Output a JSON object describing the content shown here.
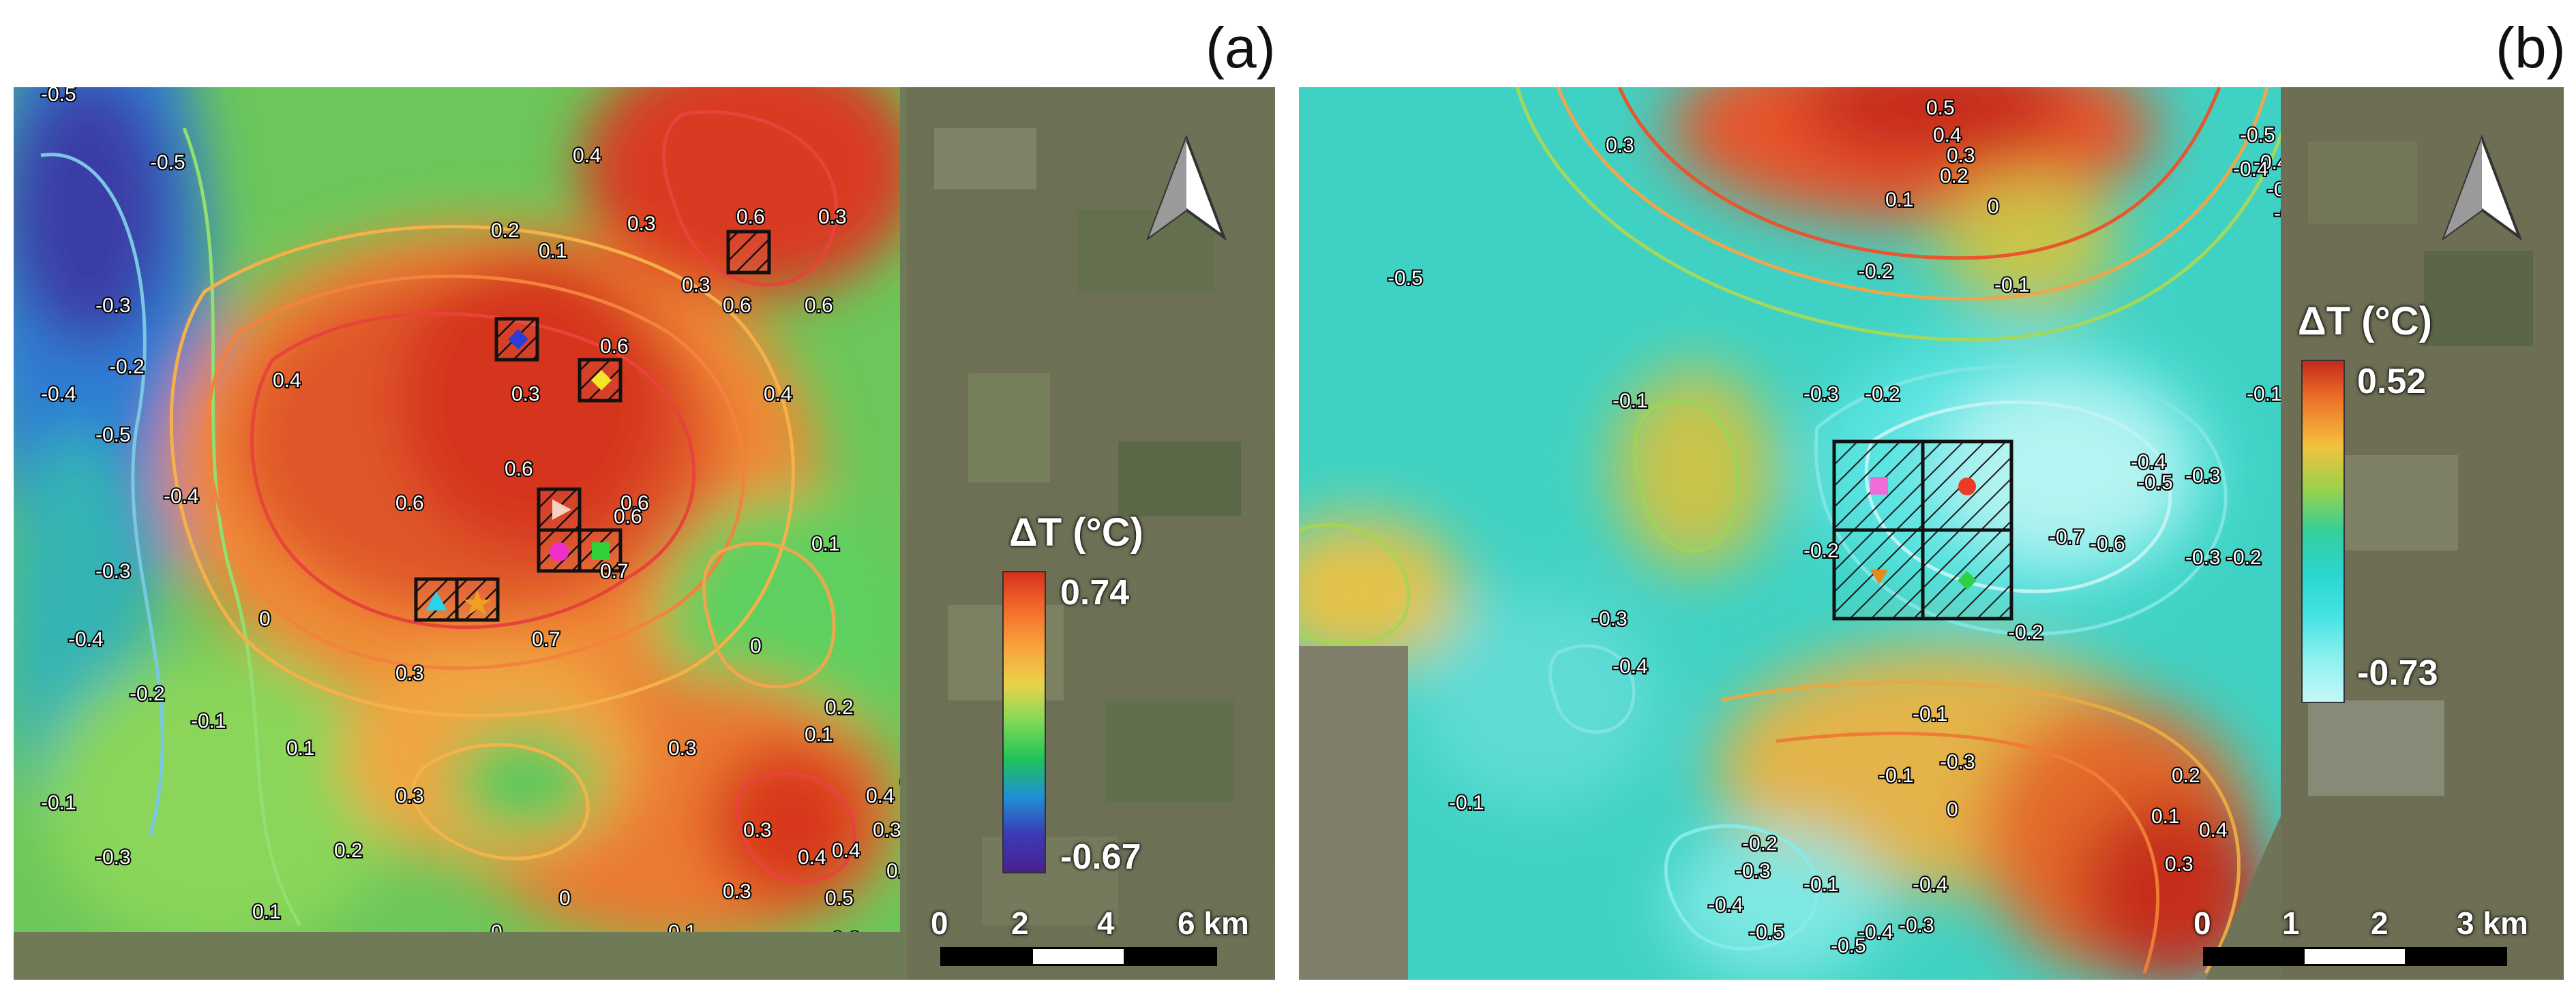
{
  "panels": [
    {
      "label": "(a)",
      "legend": {
        "title": "ΔT (°C)",
        "max": "0.74",
        "min": "-0.67",
        "colors": [
          "#d7301f",
          "#f46d2a",
          "#f9a43c",
          "#e9d34a",
          "#7ed957",
          "#1ec25a",
          "#1f8fd6",
          "#3b3bb5",
          "#4b1f91"
        ]
      },
      "scale_bar": {
        "ticks": [
          "0",
          "2",
          "4",
          "6 km"
        ]
      },
      "contour_labels": [
        "-0.5",
        "-0.5",
        "-0.3",
        "-0.2",
        "-0.4",
        "-0.5",
        "-0.4",
        "-0.3",
        "-0.4",
        "-0.2",
        "-0.1",
        "-0.1",
        "-0.3",
        "0",
        "0.1",
        "0.1",
        "0.2",
        "0.3",
        "0.3",
        "0.2",
        "0.1",
        "0.3",
        "0.6",
        "0.6",
        "0.6",
        "0.6",
        "0.4",
        "0.3",
        "0.4",
        "0.3",
        "0.6",
        "0.6",
        "0.6",
        "0.3",
        "0.4",
        "0.6",
        "0.7",
        "0.7",
        "0.1",
        "0.2",
        "0",
        "0.3",
        "0.3",
        "0.3",
        "0.4",
        "0.5",
        "0",
        "0.3",
        "0.4",
        "0.4",
        "0.1",
        "0.5",
        "0.3",
        "0.2",
        "0.1",
        "0.3",
        "0"
      ],
      "colors": {
        "hot": "#d8321e",
        "warm": "#ef7a30",
        "mid": "#f3b54a",
        "green": "#56c95c",
        "cyan": "#2fb8c8",
        "blue": "#2e6fd1",
        "deep": "#3d3aa8",
        "satellite": "#6e7a58"
      }
    },
    {
      "label": "(b)",
      "legend": {
        "title": "ΔT (°C)",
        "max": "0.52",
        "min": "-0.73",
        "colors": [
          "#c62a1c",
          "#f07a2b",
          "#f2c23f",
          "#9ad24a",
          "#34cf9a",
          "#2ad6cf",
          "#46e3e3",
          "#8ff0f0",
          "#c4f7f7"
        ]
      },
      "scale_bar": {
        "ticks": [
          "0",
          "1",
          "2",
          "3 km"
        ]
      },
      "contour_labels": [
        "0.5",
        "0.4",
        "0.3",
        "0.2",
        "0.1",
        "0",
        "0.3",
        "-0.4",
        "-0.5",
        "-0.3",
        "-0.2",
        "-0.5",
        "-0.4",
        "-0.2",
        "-0.1",
        "-0.3",
        "-0.2",
        "-0.1",
        "-0.4",
        "-0.5",
        "-0.6",
        "-0.7",
        "-0.3",
        "-0.1",
        "-0.3",
        "-0.4",
        "-0.2",
        "-0.1",
        "0",
        "0.1",
        "0.2",
        "0.3",
        "0.4",
        "-0.2",
        "-0.3",
        "-0.4",
        "-0.5",
        "-0.4",
        "-0.1",
        "-0.1",
        "-0.2",
        "-0.3",
        "-0.3",
        "-0.4",
        "-0.5",
        "-0.3",
        "-0.2",
        "-0.1"
      ],
      "colors": {
        "hot": "#c4301c",
        "warm": "#ed7d2f",
        "mid": "#e7c24a",
        "green": "#8fd45a",
        "teal": "#33cfb8",
        "cyan": "#4fe0df",
        "pale": "#9eefee",
        "satellite": "#6f7558"
      }
    }
  ]
}
